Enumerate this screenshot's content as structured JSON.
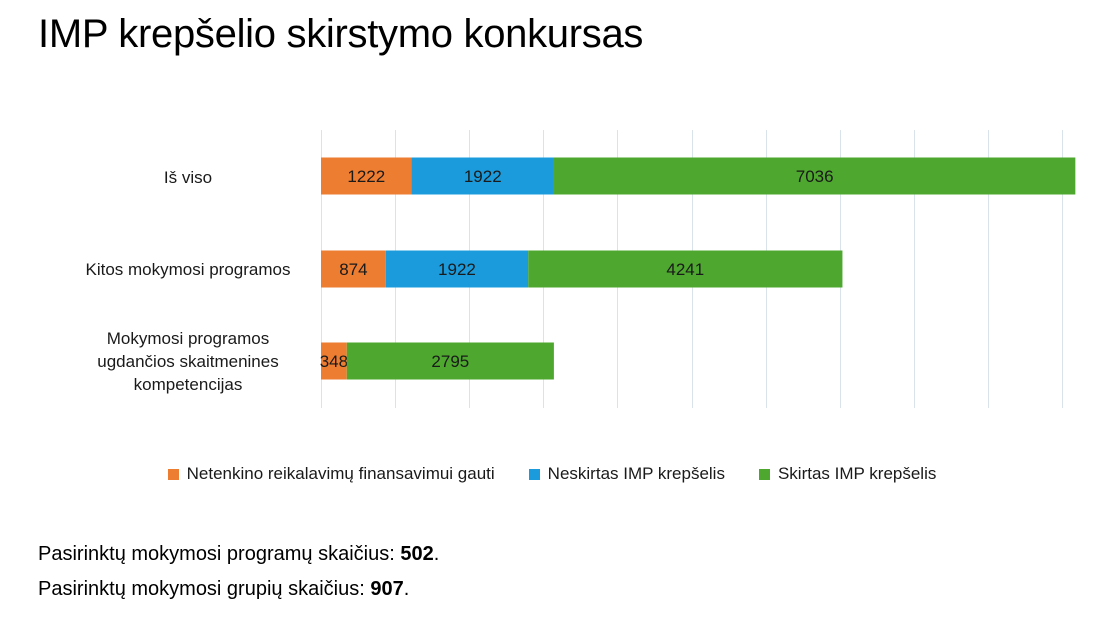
{
  "page": {
    "title": "IMP krepšelio skirstymo konkursas"
  },
  "colors": {
    "orange": "#ED7D31",
    "blue": "#1B9BDB",
    "green": "#4EA72E",
    "grid": "#D9E4EA"
  },
  "chart_data": {
    "type": "bar",
    "orientation": "horizontal",
    "stacked": true,
    "categories": [
      "Iš viso",
      "Kitos mokymosi programos",
      "Mokymosi programos ugdančios skaitmenines kompetencijas"
    ],
    "series": [
      {
        "name": "Netenkino reikalavimų finansavimui gauti",
        "values": [
          1222,
          874,
          348
        ]
      },
      {
        "name": "Neskirtas IMP krepšelis",
        "values": [
          1922,
          1922,
          0
        ]
      },
      {
        "name": "Skirtas IMP krepšelis",
        "values": [
          7036,
          4241,
          2795
        ]
      }
    ],
    "xlim": [
      0,
      10000
    ],
    "legend_position": "bottom",
    "grid": true
  },
  "notes": [
    {
      "text": "Pasirinktų mokymosi programų skaičius: ",
      "value": "502",
      "suffix": "."
    },
    {
      "text": "Pasirinktų mokymosi grupių skaičius: ",
      "value": "907",
      "suffix": "."
    }
  ]
}
